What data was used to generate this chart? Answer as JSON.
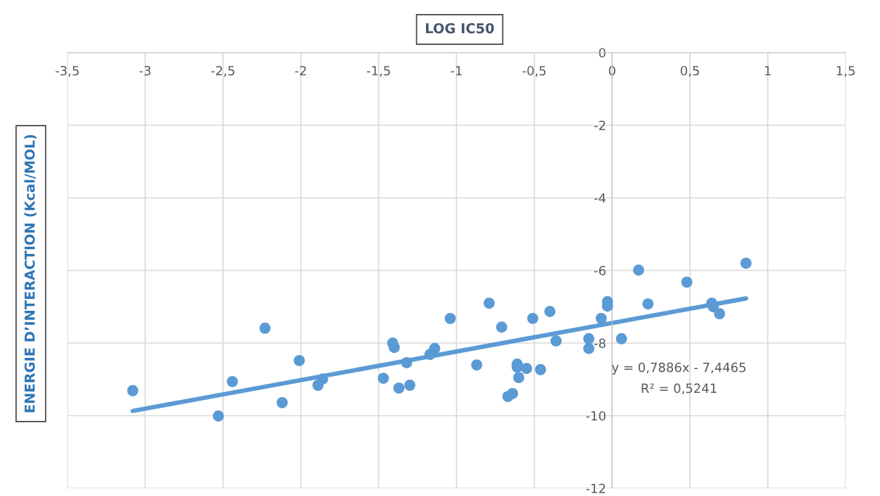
{
  "chart_data": {
    "type": "scatter",
    "xlabel": "LOG IC50",
    "ylabel": "ENERGIE D’INTERACTION (Kcal/MOL)",
    "series": [
      {
        "color": "#5b9bd5",
        "marker": "circle",
        "x": [
          -3.08,
          -2.53,
          -2.44,
          -2.23,
          -2.12,
          -2.01,
          -1.89,
          -1.86,
          -1.47,
          -1.41,
          -1.4,
          -1.37,
          -1.32,
          -1.3,
          -1.17,
          -1.14,
          -1.04,
          -0.87,
          -0.79,
          -0.71,
          -0.67,
          -0.64,
          -0.61,
          -0.61,
          -0.6,
          -0.55,
          -0.51,
          -0.46,
          -0.4,
          -0.36,
          -0.15,
          -0.15,
          -0.07,
          -0.03,
          -0.03,
          0.06,
          0.17,
          0.23,
          0.48,
          0.64,
          0.65,
          0.69,
          0.86
        ],
        "values": [
          -9.31,
          -10.01,
          -9.06,
          -7.59,
          -9.64,
          -8.48,
          -9.16,
          -8.99,
          -8.97,
          -8.0,
          -8.12,
          -9.24,
          -8.54,
          -9.16,
          -8.31,
          -8.15,
          -7.32,
          -8.6,
          -6.9,
          -7.56,
          -9.47,
          -9.39,
          -8.58,
          -8.66,
          -8.95,
          -8.7,
          -7.32,
          -8.73,
          -7.13,
          -7.94,
          -7.88,
          -8.15,
          -7.32,
          -6.98,
          -6.86,
          -7.88,
          -5.99,
          -6.92,
          -6.32,
          -6.9,
          -7.0,
          -7.19,
          -5.8
        ]
      },
      {
        "type": "line",
        "color": "#5b9bd5",
        "line_style": "solid",
        "x": [
          -3.08,
          0.86
        ],
        "values": [
          -9.87,
          -6.77
        ]
      }
    ],
    "xlim": [
      -3.5,
      1.5
    ],
    "xticks": [
      {
        "value": -3.5,
        "label": "-3,5"
      },
      -3,
      {
        "value": -2.5,
        "label": "-2,5"
      },
      -2,
      {
        "value": -1.5,
        "label": "-1,5"
      },
      -1,
      {
        "value": -0.5,
        "label": "-0,5"
      },
      0,
      {
        "value": 0.5,
        "label": "0,5"
      },
      1,
      {
        "value": 1.5,
        "label": "1,5"
      }
    ],
    "ylim": [
      -12,
      0
    ],
    "yticks": [
      -12,
      -10,
      -8,
      -6,
      -4,
      -2,
      0
    ],
    "grid": true,
    "legend": false,
    "annotations": [
      "y = 0,7886x - 7,4465",
      "R² = 0,5241"
    ]
  }
}
